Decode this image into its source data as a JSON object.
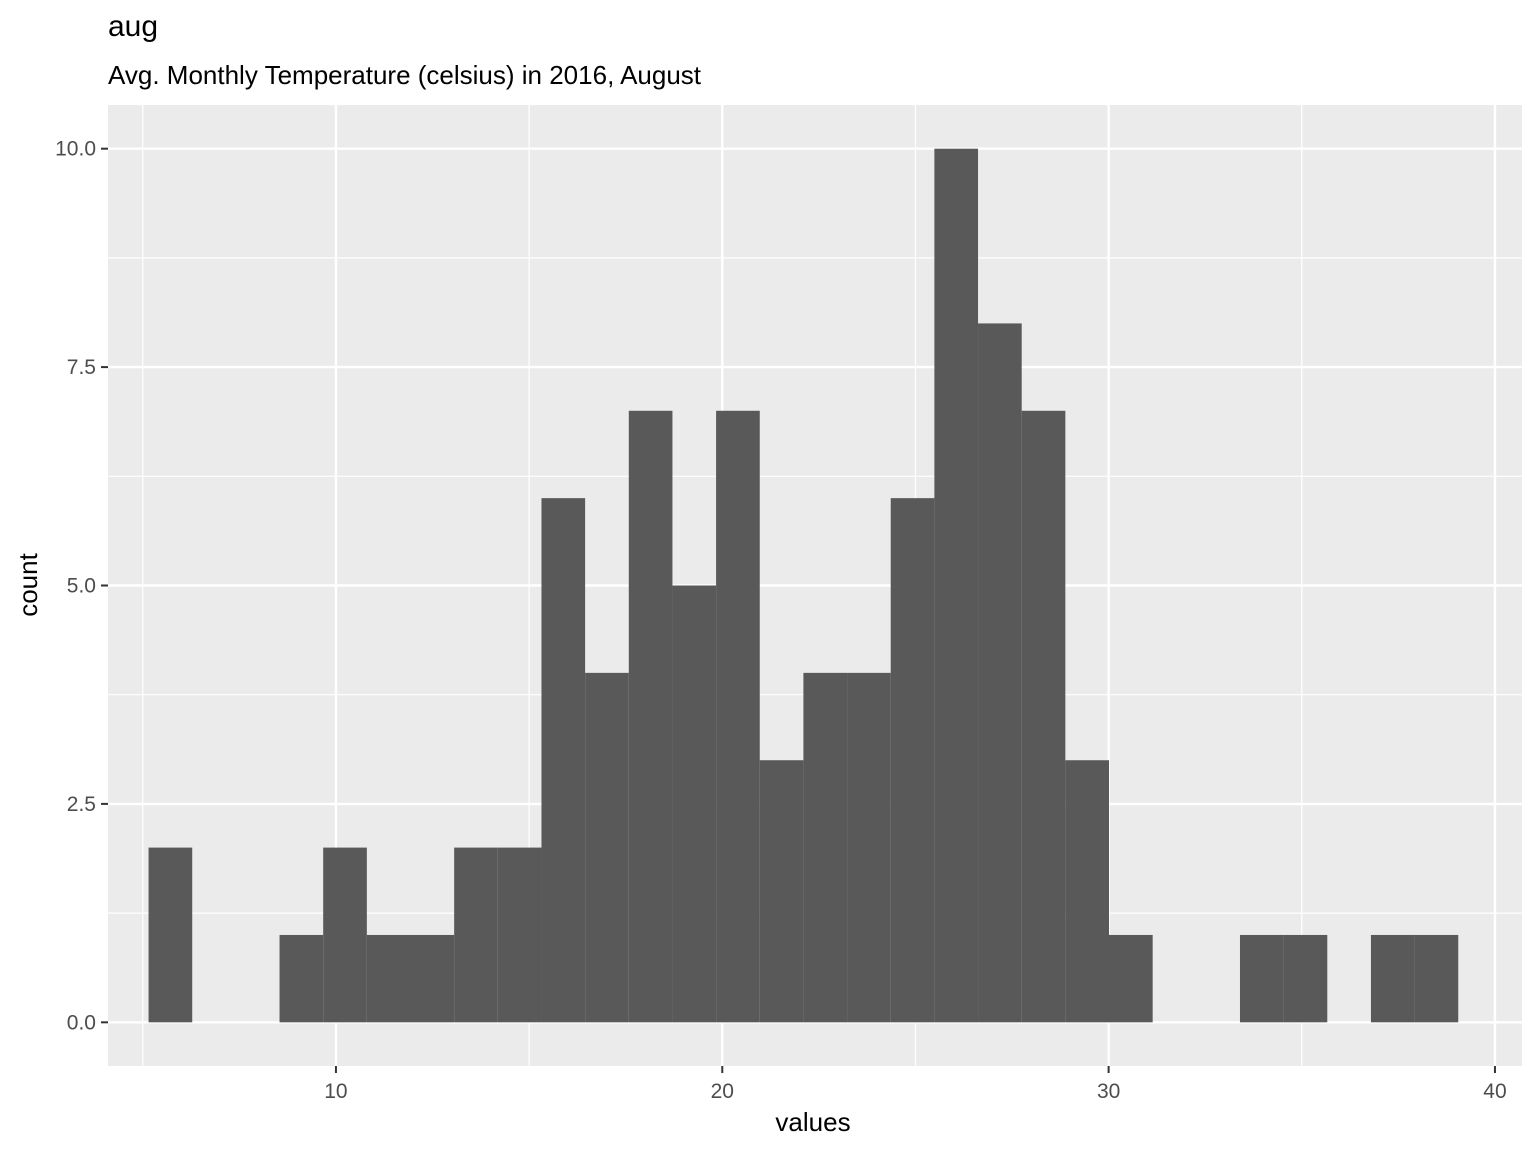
{
  "chart_data": {
    "type": "bar",
    "title": "aug",
    "subtitle": "Avg. Monthly Temperature (celsius) in 2016, August",
    "xlabel": "values",
    "ylabel": "count",
    "xlim": [
      4.1,
      40.7
    ],
    "ylim": [
      -0.5,
      10.5
    ],
    "x_ticks": [
      10,
      20,
      30,
      40
    ],
    "y_ticks": [
      0.0,
      2.5,
      5.0,
      7.5,
      10.0
    ],
    "x_tick_labels": [
      "10",
      "20",
      "30",
      "40"
    ],
    "y_tick_labels": [
      "0.0",
      "2.5",
      "5.0",
      "7.5",
      "10.0"
    ],
    "grid": true,
    "bar_color": "#595959",
    "panel_color": "#ebebeb",
    "grid_color": "#ffffff",
    "bins": [
      {
        "x0": 5.15,
        "x1": 6.28,
        "count": 2
      },
      {
        "x0": 6.28,
        "x1": 7.41,
        "count": 0
      },
      {
        "x0": 7.41,
        "x1": 8.54,
        "count": 0
      },
      {
        "x0": 8.54,
        "x1": 9.67,
        "count": 1
      },
      {
        "x0": 9.67,
        "x1": 10.8,
        "count": 2
      },
      {
        "x0": 10.8,
        "x1": 11.93,
        "count": 1
      },
      {
        "x0": 11.93,
        "x1": 13.06,
        "count": 1
      },
      {
        "x0": 13.06,
        "x1": 14.19,
        "count": 2
      },
      {
        "x0": 14.19,
        "x1": 15.32,
        "count": 2
      },
      {
        "x0": 15.32,
        "x1": 16.45,
        "count": 6
      },
      {
        "x0": 16.45,
        "x1": 17.58,
        "count": 4
      },
      {
        "x0": 17.58,
        "x1": 18.71,
        "count": 7
      },
      {
        "x0": 18.71,
        "x1": 19.84,
        "count": 5
      },
      {
        "x0": 19.84,
        "x1": 20.97,
        "count": 7
      },
      {
        "x0": 20.97,
        "x1": 22.1,
        "count": 3
      },
      {
        "x0": 22.1,
        "x1": 23.23,
        "count": 4
      },
      {
        "x0": 23.23,
        "x1": 24.36,
        "count": 4
      },
      {
        "x0": 24.36,
        "x1": 25.49,
        "count": 6
      },
      {
        "x0": 25.49,
        "x1": 26.62,
        "count": 10
      },
      {
        "x0": 26.62,
        "x1": 27.75,
        "count": 8
      },
      {
        "x0": 27.75,
        "x1": 28.88,
        "count": 7
      },
      {
        "x0": 28.88,
        "x1": 30.01,
        "count": 3
      },
      {
        "x0": 30.01,
        "x1": 31.14,
        "count": 1
      },
      {
        "x0": 31.14,
        "x1": 32.27,
        "count": 0
      },
      {
        "x0": 32.27,
        "x1": 33.4,
        "count": 0
      },
      {
        "x0": 33.4,
        "x1": 34.53,
        "count": 1
      },
      {
        "x0": 34.53,
        "x1": 35.66,
        "count": 1
      },
      {
        "x0": 35.66,
        "x1": 36.79,
        "count": 0
      },
      {
        "x0": 36.79,
        "x1": 37.92,
        "count": 1
      },
      {
        "x0": 37.92,
        "x1": 39.05,
        "count": 1
      }
    ]
  }
}
